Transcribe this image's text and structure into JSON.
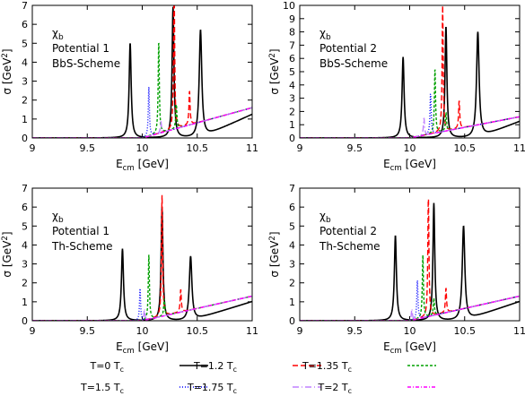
{
  "chart_data": [
    {
      "type": "line",
      "annotations": [
        "χb",
        "Potential 1",
        "BbS-Scheme"
      ],
      "xlabel": "E_cm [GeV]",
      "ylabel": "σ [GeV^2]",
      "xlim": [
        9,
        11
      ],
      "ylim": [
        0,
        7
      ],
      "xticks": [
        9,
        9.5,
        10,
        10.5,
        11
      ],
      "yticks": [
        0,
        1,
        2,
        3,
        4,
        5,
        6,
        7
      ],
      "continuum_end": 1.6,
      "series": [
        {
          "name": "T=0 T_c",
          "peaks": [
            [
              9.89,
              5.0,
              0.011
            ],
            [
              10.28,
              6.9,
              0.01
            ],
            [
              10.53,
              5.7,
              0.014
            ]
          ]
        },
        {
          "name": "T=1.2 T_c",
          "peaks": [
            [
              10.29,
              7.6,
              0.006
            ],
            [
              10.43,
              1.8,
              0.006
            ]
          ]
        },
        {
          "name": "T=1.35 T_c",
          "peaks": [
            [
              10.15,
              4.9,
              0.006
            ],
            [
              10.31,
              1.3,
              0.006
            ]
          ]
        },
        {
          "name": "T=1.5 T_c",
          "peaks": [
            [
              10.06,
              2.6,
              0.006
            ]
          ]
        },
        {
          "name": "T=1.75 T_c",
          "peaks": [
            [
              10.17,
              0.6,
              0.006
            ]
          ]
        },
        {
          "name": "T=2 T_c",
          "peaks": []
        }
      ]
    },
    {
      "type": "line",
      "annotations": [
        "χb",
        "Potential 2",
        "BbS-Scheme"
      ],
      "xlabel": "E_cm [GeV]",
      "ylabel": "σ [GeV^2]",
      "xlim": [
        9,
        11
      ],
      "ylim": [
        0,
        10
      ],
      "xticks": [
        9,
        9.5,
        10,
        10.5,
        11
      ],
      "yticks": [
        0,
        1,
        2,
        3,
        4,
        5,
        6,
        7,
        8,
        9,
        10
      ],
      "continuum_end": 1.6,
      "series": [
        {
          "name": "T=0 T_c",
          "peaks": [
            [
              9.94,
              6.1,
              0.011
            ],
            [
              10.33,
              8.4,
              0.01
            ],
            [
              10.62,
              8.0,
              0.014
            ]
          ]
        },
        {
          "name": "T=1.2 T_c",
          "peaks": [
            [
              10.3,
              9.5,
              0.006
            ],
            [
              10.45,
              2.1,
              0.006
            ]
          ]
        },
        {
          "name": "T=1.35 T_c",
          "peaks": [
            [
              10.23,
              4.9,
              0.006
            ],
            [
              10.33,
              1.4,
              0.006
            ]
          ]
        },
        {
          "name": "T=1.5 T_c",
          "peaks": [
            [
              10.19,
              3.1,
              0.006
            ]
          ]
        },
        {
          "name": "T=1.75 T_c",
          "peaks": [
            [
              10.13,
              1.3,
              0.006
            ]
          ]
        },
        {
          "name": "T=2 T_c",
          "peaks": []
        }
      ]
    },
    {
      "type": "line",
      "annotations": [
        "χb",
        "Potential 1",
        "Th-Scheme"
      ],
      "xlabel": "E_cm [GeV]",
      "ylabel": "σ [GeV^2]",
      "xlim": [
        9,
        11
      ],
      "ylim": [
        0,
        7
      ],
      "xticks": [
        9,
        9.5,
        10,
        10.5,
        11
      ],
      "yticks": [
        0,
        1,
        2,
        3,
        4,
        5,
        6,
        7
      ],
      "continuum_end": 1.3,
      "series": [
        {
          "name": "T=0 T_c",
          "peaks": [
            [
              9.82,
              3.8,
              0.011
            ],
            [
              10.18,
              6.0,
              0.01
            ],
            [
              10.44,
              3.4,
              0.014
            ]
          ]
        },
        {
          "name": "T=1.2 T_c",
          "peaks": [
            [
              10.18,
              6.4,
              0.006
            ],
            [
              10.35,
              1.2,
              0.006
            ]
          ]
        },
        {
          "name": "T=1.35 T_c",
          "peaks": [
            [
              10.06,
              3.4,
              0.006
            ],
            [
              10.2,
              0.9,
              0.006
            ]
          ]
        },
        {
          "name": "T=1.5 T_c",
          "peaks": [
            [
              9.98,
              1.7,
              0.006
            ]
          ]
        },
        {
          "name": "T=1.75 T_c",
          "peaks": [
            [
              10.02,
              0.6,
              0.006
            ]
          ]
        },
        {
          "name": "T=2 T_c",
          "peaks": []
        }
      ]
    },
    {
      "type": "line",
      "annotations": [
        "χb",
        "Potential 2",
        "Th-Scheme"
      ],
      "xlabel": "E_cm [GeV]",
      "ylabel": "σ [GeV^2]",
      "xlim": [
        9,
        11
      ],
      "ylim": [
        0,
        7
      ],
      "xticks": [
        9,
        9.5,
        10,
        10.5,
        11
      ],
      "yticks": [
        0,
        1,
        2,
        3,
        4,
        5,
        6,
        7
      ],
      "continuum_end": 1.3,
      "series": [
        {
          "name": "T=0 T_c",
          "peaks": [
            [
              9.87,
              4.5,
              0.011
            ],
            [
              10.22,
              6.2,
              0.01
            ],
            [
              10.49,
              5.0,
              0.014
            ]
          ]
        },
        {
          "name": "T=1.2 T_c",
          "peaks": [
            [
              10.17,
              6.4,
              0.006
            ],
            [
              10.33,
              1.3,
              0.006
            ]
          ]
        },
        {
          "name": "T=1.35 T_c",
          "peaks": [
            [
              10.12,
              3.3,
              0.006
            ],
            [
              10.22,
              0.9,
              0.006
            ]
          ]
        },
        {
          "name": "T=1.5 T_c",
          "peaks": [
            [
              10.07,
              2.1,
              0.006
            ]
          ]
        },
        {
          "name": "T=1.75 T_c",
          "peaks": [
            [
              10.02,
              0.6,
              0.006
            ]
          ]
        },
        {
          "name": "T=2 T_c",
          "peaks": []
        }
      ]
    }
  ],
  "legend": {
    "placement": "bottom",
    "entries": [
      {
        "label": "T=0 T_c",
        "color": "#000000",
        "dash": "solid"
      },
      {
        "label": "T=1.2 T_c",
        "color": "#ff0000",
        "dash": "dashed"
      },
      {
        "label": "T=1.35 T_c",
        "color": "#00a000",
        "dash": "dashed-short"
      },
      {
        "label": "T=1.5 T_c",
        "color": "#0000ff",
        "dash": "dotted"
      },
      {
        "label": "T=1.75 T_c",
        "color": "#c080ff",
        "dash": "dash-dot"
      },
      {
        "label": "T=2 T_c",
        "color": "#ff00ff",
        "dash": "dash-dot-short"
      }
    ]
  }
}
